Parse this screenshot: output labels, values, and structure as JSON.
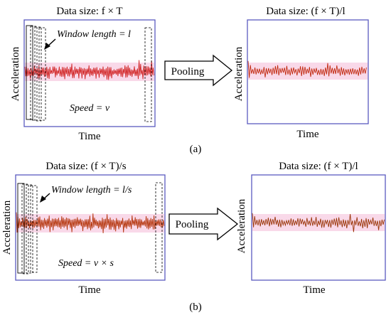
{
  "panel_a": {
    "label": "(a)",
    "left": {
      "title": "Data size: f × T",
      "ylabel": "Acceleration",
      "xlabel": "Time",
      "window_note": "Window length = l",
      "speed_note": "Speed = v"
    },
    "arrow_label": "Pooling",
    "right": {
      "title": "Data size: (f × T)/l",
      "ylabel": "Acceleration",
      "xlabel": "Time"
    }
  },
  "panel_b": {
    "label": "(b)",
    "left": {
      "title": "Data size: (f × T)/s",
      "ylabel": "Acceleration",
      "xlabel": "Time",
      "window_note": "Window length = l/s",
      "speed_note": "Speed = v × s"
    },
    "arrow_label": "Pooling",
    "right": {
      "title": "Data size: (f × T)/l",
      "ylabel": "Acceleration",
      "xlabel": "Time"
    }
  },
  "colors": {
    "frame": "#5b5bbf",
    "signal": "#cc1f1f",
    "signal_dark": "#8a2a00",
    "band": "#f2b8d6"
  }
}
